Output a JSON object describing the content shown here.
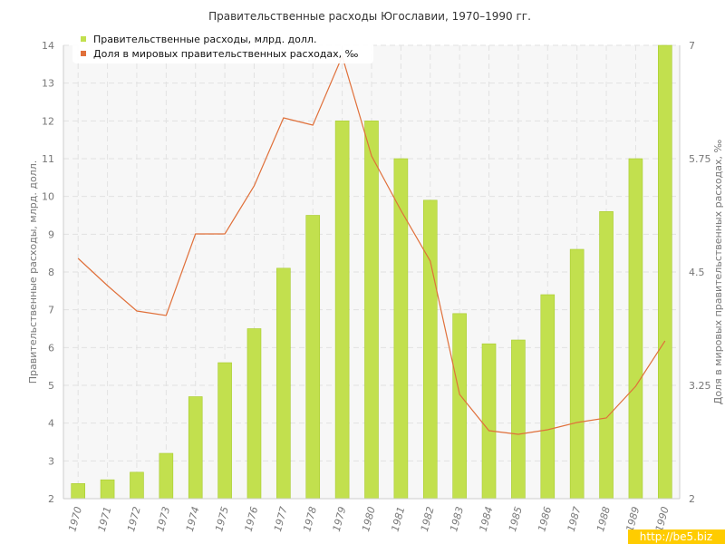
{
  "chart_data": {
    "type": "bar",
    "title": "Правительственные расходы Югославии, 1970–1990 гг.",
    "categories": [
      "1970",
      "1971",
      "1972",
      "1973",
      "1974",
      "1975",
      "1976",
      "1977",
      "1978",
      "1979",
      "1980",
      "1981",
      "1982",
      "1983",
      "1984",
      "1985",
      "1986",
      "1987",
      "1988",
      "1989",
      "1990"
    ],
    "series": [
      {
        "name": "Правительственные расходы, млрд. долл.",
        "type": "bar",
        "axis": "left",
        "color": "#c2e04e",
        "values": [
          2.4,
          2.5,
          2.7,
          3.2,
          4.7,
          5.6,
          6.5,
          8.1,
          9.5,
          12.0,
          12.0,
          11.0,
          9.9,
          6.9,
          6.1,
          6.2,
          7.4,
          8.6,
          9.6,
          11.0,
          14.0
        ]
      },
      {
        "name": "Доля в мировых правительственных расходах, ‰",
        "type": "line",
        "axis": "right",
        "color": "#e0703a",
        "values": [
          4.65,
          4.35,
          4.07,
          4.02,
          4.92,
          4.92,
          5.45,
          6.2,
          6.12,
          6.88,
          5.78,
          5.18,
          4.62,
          3.15,
          2.75,
          2.71,
          2.76,
          2.84,
          2.89,
          3.24,
          3.74
        ]
      }
    ],
    "ylabel": "Правительственные расходы, млрд. долл.",
    "ylabel_right": "Доля в мировых правительственных расходах, ‰",
    "ylim": [
      2,
      14
    ],
    "ylim_right": [
      2,
      7
    ],
    "yticks": [
      "2",
      "3",
      "4",
      "5",
      "6",
      "7",
      "8",
      "9",
      "10",
      "11",
      "12",
      "13",
      "14"
    ],
    "yticks_right": [
      "2",
      "3.25",
      "4.5",
      "5.75",
      "7"
    ],
    "grid": true,
    "legend_position": "top-left"
  },
  "watermark": "http://be5.biz"
}
